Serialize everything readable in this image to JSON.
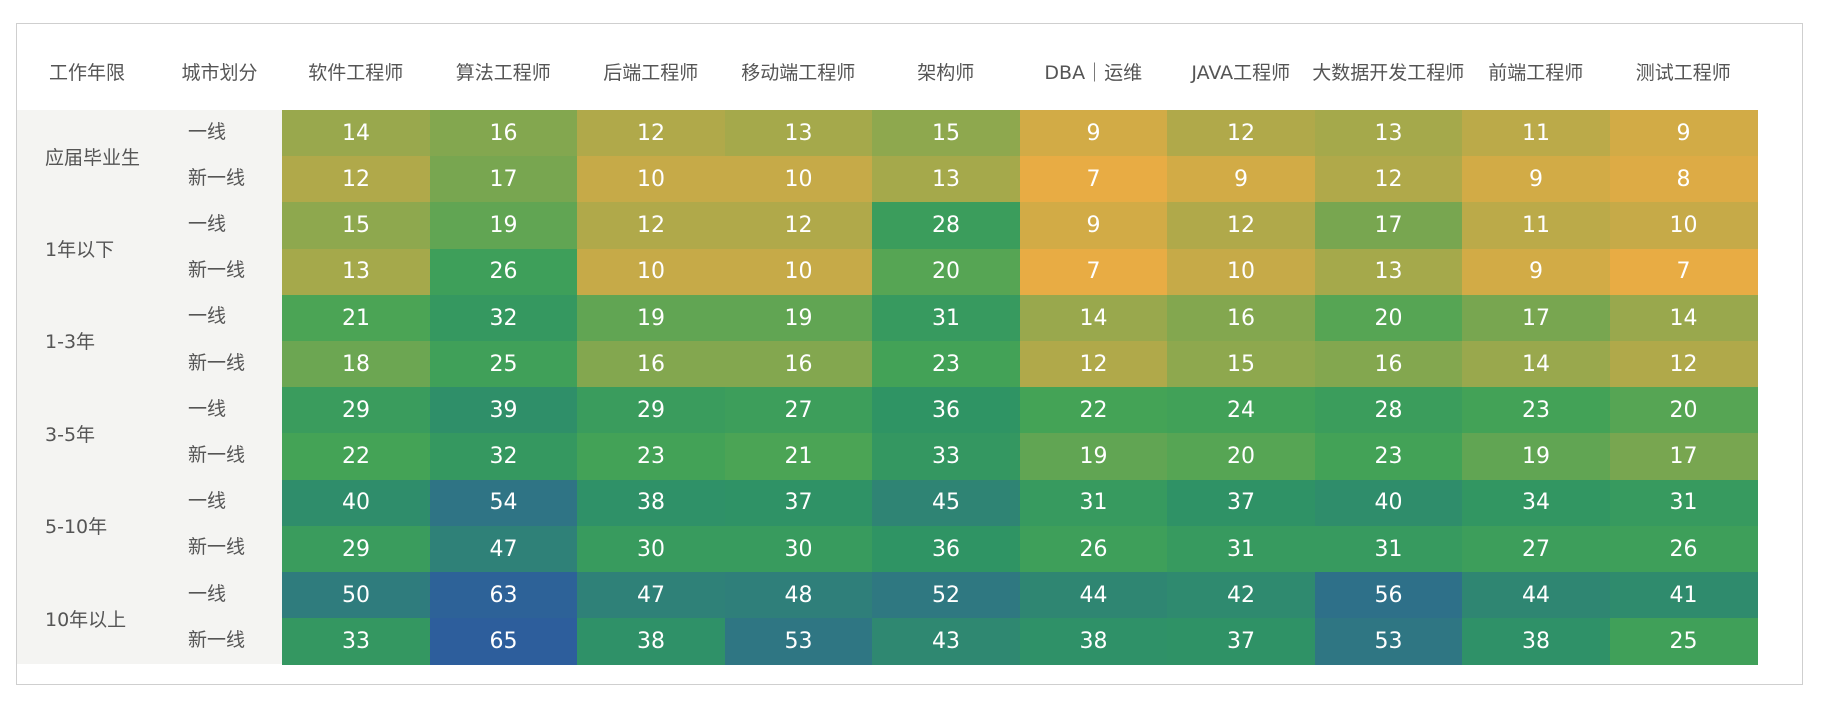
{
  "table": {
    "headers": [
      "工作年限",
      "城市划分",
      "软件工程师",
      "算法工程师",
      "后端工程师",
      "移动端工程师",
      "架构师",
      "DBA｜运维",
      "JAVA工程师",
      "大数据开发工程师",
      "前端工程师",
      "测试工程师"
    ],
    "color_scale": [
      "#e8ac44",
      "#45a456",
      "#2f9464",
      "#2f7b7e",
      "#2d5e9c"
    ],
    "groups": [
      {
        "label": "应届毕业生",
        "rows": [
          {
            "city": "一线",
            "values": [
              14,
              16,
              12,
              13,
              15,
              9,
              12,
              13,
              11,
              9
            ]
          },
          {
            "city": "新一线",
            "values": [
              12,
              17,
              10,
              10,
              13,
              7,
              9,
              12,
              9,
              8
            ]
          }
        ]
      },
      {
        "label": "1年以下",
        "rows": [
          {
            "city": "一线",
            "values": [
              15,
              19,
              12,
              12,
              28,
              9,
              12,
              17,
              11,
              10
            ]
          },
          {
            "city": "新一线",
            "values": [
              13,
              26,
              10,
              10,
              20,
              7,
              10,
              13,
              9,
              7
            ]
          }
        ]
      },
      {
        "label": "1-3年",
        "rows": [
          {
            "city": "一线",
            "values": [
              21,
              32,
              19,
              19,
              31,
              14,
              16,
              20,
              17,
              14
            ]
          },
          {
            "city": "新一线",
            "values": [
              18,
              25,
              16,
              16,
              23,
              12,
              15,
              16,
              14,
              12
            ]
          }
        ]
      },
      {
        "label": "3-5年",
        "rows": [
          {
            "city": "一线",
            "values": [
              29,
              39,
              29,
              27,
              36,
              22,
              24,
              28,
              23,
              20
            ]
          },
          {
            "city": "新一线",
            "values": [
              22,
              32,
              23,
              21,
              33,
              19,
              20,
              23,
              19,
              17
            ]
          }
        ]
      },
      {
        "label": "5-10年",
        "rows": [
          {
            "city": "一线",
            "values": [
              40,
              54,
              38,
              37,
              45,
              31,
              37,
              40,
              34,
              31
            ]
          },
          {
            "city": "新一线",
            "values": [
              29,
              47,
              30,
              30,
              36,
              26,
              31,
              31,
              27,
              26
            ]
          }
        ]
      },
      {
        "label": "10年以上",
        "rows": [
          {
            "city": "一线",
            "values": [
              50,
              63,
              47,
              48,
              52,
              44,
              42,
              56,
              44,
              41
            ]
          },
          {
            "city": "新一线",
            "values": [
              33,
              65,
              38,
              53,
              43,
              38,
              37,
              53,
              38,
              25
            ]
          }
        ]
      }
    ]
  }
}
